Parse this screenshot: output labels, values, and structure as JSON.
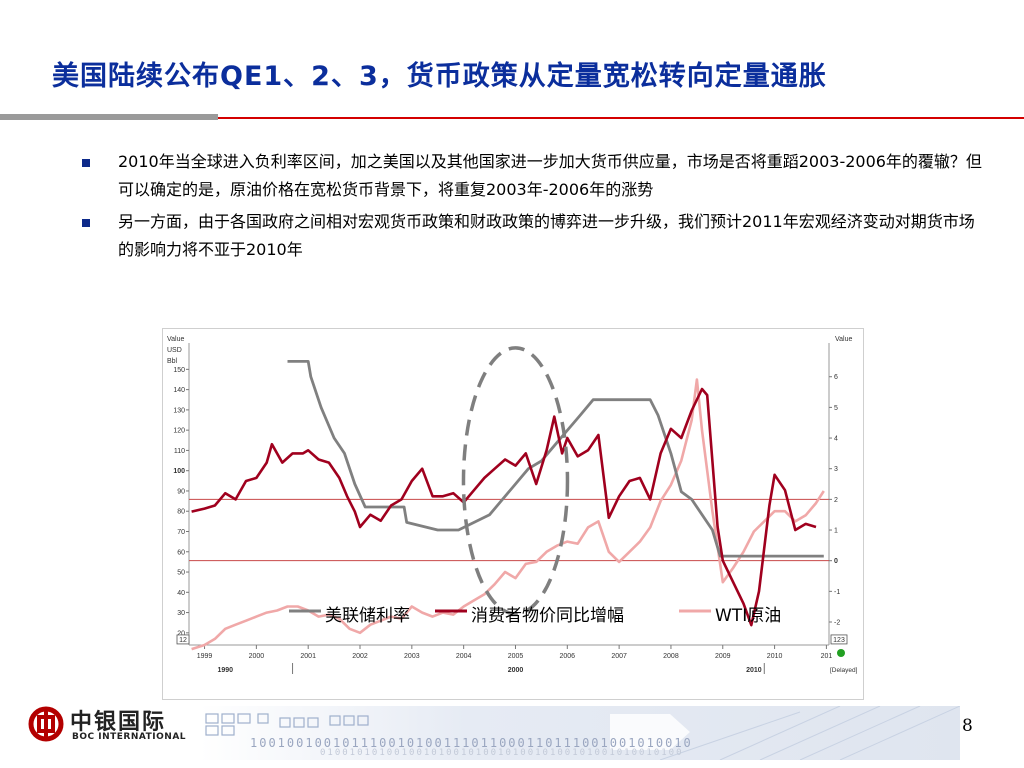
{
  "slide": {
    "title": "美国陆续公布QE1、2、3，货币政策从定量宽松转向定量通胀",
    "page_number": "8"
  },
  "bullets": [
    {
      "text": "2010年当全球进入负利率区间，加之美国以及其他国家进一步加大货币供应量，市场是否将重蹈2003-2006年的覆辙？但可以确定的是，原油价格在宽松货币背景下，将重复2003年-2006年的涨势"
    },
    {
      "text": "另一方面，由于各国政府之间相对宏观货币政策和财政政策的博弈进一步升级，我们预计2011年宏观经济变动对期货市场的影响力将不亚于2010年"
    }
  ],
  "footer": {
    "logo_cn": "中银国际",
    "logo_en": "BOC INTERNATIONAL",
    "binary_line1": "100100100101110010100111011000110111001001010010",
    "binary_line2": "0100101010010010100101001010010100101001010010100"
  },
  "colors": {
    "title": "#0b2e9c",
    "accent_red": "#d40000",
    "fed_rate": "#808080",
    "cpi": "#a0001e",
    "wti": "#f0a8a8"
  },
  "chart_data": {
    "type": "line",
    "left_axis": {
      "header": [
        "Value",
        "USD",
        "Bbl"
      ],
      "ticks": [
        20,
        30,
        40,
        50,
        60,
        70,
        80,
        90,
        100,
        110,
        120,
        130,
        140,
        150
      ],
      "ylim": [
        14,
        163
      ],
      "badge": "12"
    },
    "right_axis": {
      "header": [
        "Value"
      ],
      "ticks": [
        -2,
        -1,
        0,
        1,
        2,
        3,
        4,
        5,
        6
      ],
      "ylim": [
        -2.75,
        7.1
      ],
      "badge": "123"
    },
    "x_ticks": [
      "1999",
      "2000",
      "2001",
      "2002",
      "2003",
      "2004",
      "2005",
      "2006",
      "2007",
      "2008",
      "2009",
      "2010",
      "201"
    ],
    "xlim": [
      1998.7,
      2011.05
    ],
    "period_labels": [
      "1990",
      "2000",
      "2010"
    ],
    "delayed_label": "[Delayed]",
    "ref_lines_right": [
      2,
      0
    ],
    "series": [
      {
        "name": "美联储利率",
        "axis": "right",
        "x": [
          2000.6,
          2001.0,
          2001.05,
          2001.25,
          2001.5,
          2001.7,
          2001.9,
          2002.1,
          2002.85,
          2002.9,
          2003.5,
          2003.9,
          2004.5,
          2004.75,
          2005.0,
          2005.25,
          2005.5,
          2005.75,
          2006.0,
          2006.25,
          2006.5,
          2007.0,
          2007.6,
          2007.75,
          2008.0,
          2008.2,
          2008.4,
          2008.8,
          2008.95,
          2010.95
        ],
        "values": [
          6.5,
          6.5,
          6.0,
          5.0,
          4.0,
          3.5,
          2.5,
          1.75,
          1.75,
          1.25,
          1.0,
          1.0,
          1.5,
          2.0,
          2.5,
          3.0,
          3.25,
          3.75,
          4.25,
          4.75,
          5.25,
          5.25,
          5.25,
          4.75,
          3.5,
          2.25,
          2.0,
          1.0,
          0.15,
          0.15
        ]
      },
      {
        "name": "消费者物价同比增幅",
        "axis": "right",
        "x": [
          1998.75,
          1999.0,
          1999.2,
          1999.4,
          1999.6,
          1999.8,
          2000.0,
          2000.2,
          2000.3,
          2000.5,
          2000.7,
          2000.9,
          2001.0,
          2001.2,
          2001.4,
          2001.6,
          2001.75,
          2001.9,
          2002.0,
          2002.2,
          2002.4,
          2002.6,
          2002.8,
          2003.0,
          2003.2,
          2003.4,
          2003.6,
          2003.8,
          2004.0,
          2004.2,
          2004.4,
          2004.6,
          2004.8,
          2005.0,
          2005.2,
          2005.4,
          2005.6,
          2005.75,
          2005.9,
          2006.0,
          2006.2,
          2006.4,
          2006.6,
          2006.8,
          2007.0,
          2007.2,
          2007.4,
          2007.6,
          2007.8,
          2008.0,
          2008.2,
          2008.4,
          2008.6,
          2008.7,
          2008.9,
          2009.0,
          2009.2,
          2009.4,
          2009.55,
          2009.7,
          2009.9,
          2010.0,
          2010.2,
          2010.4,
          2010.6,
          2010.8
        ],
        "values": [
          1.6,
          1.7,
          1.8,
          2.2,
          2.0,
          2.6,
          2.7,
          3.2,
          3.8,
          3.2,
          3.5,
          3.5,
          3.6,
          3.3,
          3.2,
          2.7,
          2.1,
          1.6,
          1.1,
          1.5,
          1.3,
          1.8,
          2.0,
          2.6,
          3.0,
          2.1,
          2.1,
          2.2,
          1.9,
          2.3,
          2.7,
          3.0,
          3.3,
          3.1,
          3.5,
          2.5,
          3.6,
          4.7,
          3.5,
          4.0,
          3.4,
          3.6,
          4.1,
          1.4,
          2.1,
          2.6,
          2.7,
          2.0,
          3.5,
          4.3,
          4.0,
          4.9,
          5.6,
          5.4,
          1.1,
          0.0,
          -0.7,
          -1.4,
          -2.1,
          -1.0,
          1.8,
          2.8,
          2.3,
          1.0,
          1.2,
          1.1
        ]
      },
      {
        "name": "WTI原油",
        "axis": "left",
        "x": [
          1998.75,
          1999.0,
          1999.2,
          1999.4,
          1999.6,
          1999.8,
          2000.0,
          2000.2,
          2000.4,
          2000.6,
          2000.8,
          2001.0,
          2001.2,
          2001.4,
          2001.6,
          2001.8,
          2002.0,
          2002.2,
          2002.4,
          2002.6,
          2002.8,
          2003.0,
          2003.2,
          2003.4,
          2003.6,
          2003.8,
          2004.0,
          2004.2,
          2004.4,
          2004.6,
          2004.8,
          2005.0,
          2005.2,
          2005.4,
          2005.6,
          2005.8,
          2006.0,
          2006.2,
          2006.4,
          2006.6,
          2006.8,
          2007.0,
          2007.2,
          2007.4,
          2007.6,
          2007.8,
          2008.0,
          2008.2,
          2008.4,
          2008.5,
          2008.6,
          2008.8,
          2009.0,
          2009.2,
          2009.4,
          2009.6,
          2009.8,
          2010.0,
          2010.2,
          2010.4,
          2010.6,
          2010.8,
          2010.95
        ],
        "values": [
          12,
          14,
          17,
          22,
          24,
          26,
          28,
          30,
          31,
          33,
          33,
          31,
          28,
          29,
          27,
          22,
          20,
          24,
          26,
          28,
          27,
          33,
          30,
          28,
          30,
          29,
          33,
          36,
          39,
          44,
          50,
          47,
          54,
          55,
          60,
          63,
          65,
          64,
          72,
          75,
          60,
          55,
          60,
          65,
          72,
          85,
          93,
          105,
          125,
          145,
          120,
          80,
          45,
          52,
          60,
          70,
          75,
          80,
          80,
          75,
          78,
          84,
          90
        ]
      }
    ]
  }
}
